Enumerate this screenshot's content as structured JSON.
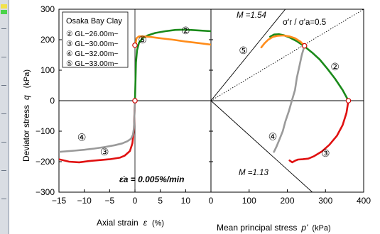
{
  "chart_data": [
    {
      "panel": "left",
      "type": "line",
      "title": "",
      "legend_title": "Osaka Bay Clay",
      "legend_placement": "top-left",
      "legend_entries": [
        "② GL−26.00m~",
        "③ GL−30.00m~",
        "④ GL−32.00m~",
        "⑤ GL−33.00m~"
      ],
      "xlabel": "Axial strain",
      "xlabel_symbol": "ε",
      "xlabel_unit": "(%)",
      "ylabel": "Deviator stress",
      "ylabel_symbol": "q",
      "ylabel_unit": "(kPa)",
      "xlim": [
        -15,
        15
      ],
      "ylim": [
        -300,
        300
      ],
      "x_ticks": [
        "−15",
        "−10",
        "−5",
        "0",
        "5",
        "10"
      ],
      "y_ticks": [
        "300",
        "200",
        "100",
        "0",
        "−100",
        "−200",
        "−300"
      ],
      "grid": false,
      "annotation": "ε̇a = 0.005%/min",
      "series": [
        {
          "name": "②",
          "color": "#1a8a1a",
          "x": [
            0,
            0.1,
            0.2,
            0.4,
            0.8,
            1.5,
            2.5,
            4,
            6,
            8,
            10,
            12,
            15
          ],
          "y": [
            0,
            60,
            125,
            165,
            190,
            205,
            214,
            222,
            228,
            232,
            233,
            231,
            228
          ]
        },
        {
          "name": "③",
          "color": "#e01010",
          "x": [
            0,
            -0.1,
            -0.2,
            -0.5,
            -1,
            -2,
            -3,
            -5,
            -7,
            -9,
            -11,
            -13,
            -15
          ],
          "y": [
            0,
            -40,
            -95,
            -140,
            -165,
            -180,
            -187,
            -192,
            -195,
            -198,
            -202,
            -200,
            -192
          ]
        },
        {
          "name": "④",
          "color": "#9a9a9a",
          "x": [
            0,
            -0.1,
            -0.2,
            -0.4,
            -0.8,
            -1.5,
            -2.5,
            -4,
            -6,
            -8,
            -10,
            -12,
            -15
          ],
          "y": [
            0,
            -45,
            -90,
            -112,
            -125,
            -133,
            -140,
            -146,
            -152,
            -157,
            -161,
            -164,
            -168
          ]
        },
        {
          "name": "⑤",
          "color": "#ff8c1a",
          "x": [
            0.1,
            0.3,
            0.8,
            1.5,
            3,
            5,
            7.5,
            10,
            12.5,
            15
          ],
          "y": [
            182,
            205,
            211,
            211,
            209,
            205,
            200,
            194,
            189,
            184
          ]
        }
      ],
      "markers": [
        {
          "label": "⑤",
          "x": 0,
          "y": 182,
          "style": "open-circle"
        },
        {
          "label": "",
          "x": 0,
          "y": 0,
          "style": "open-circle"
        }
      ],
      "series_labels": [
        {
          "text": "②",
          "x": 10,
          "y": 230
        },
        {
          "text": "⑤",
          "x": 1.5,
          "y": 200
        },
        {
          "text": "④",
          "x": -10.5,
          "y": -120
        },
        {
          "text": "③",
          "x": -6,
          "y": -168
        }
      ]
    },
    {
      "panel": "right",
      "type": "line",
      "title": "",
      "xlabel": "Mean principal stress",
      "xlabel_symbol": "p'",
      "xlabel_unit": "(kPa)",
      "xlim": [
        0,
        400
      ],
      "ylim": [
        -300,
        300
      ],
      "x_ticks": [
        "0",
        "100",
        "200",
        "300",
        "400"
      ],
      "grid": false,
      "reference_lines": [
        {
          "label": "M =1.54",
          "slope": 1.54,
          "style": "solid"
        },
        {
          "label": "M =1.13",
          "slope": -1.13,
          "style": "solid"
        },
        {
          "label": "σ'r / σ'a=0.5",
          "slope": 0.75,
          "style": "dotted"
        }
      ],
      "series": [
        {
          "name": "②",
          "color": "#1a8a1a",
          "x": [
            360,
            345,
            325,
            305,
            285,
            265,
            245,
            225,
            205,
            190,
            178,
            165,
            155
          ],
          "y": [
            0,
            35,
            72,
            105,
            135,
            158,
            178,
            195,
            208,
            215,
            218,
            217,
            210
          ]
        },
        {
          "name": "③",
          "color": "#e01010",
          "x": [
            360,
            355,
            345,
            330,
            310,
            290,
            270,
            255,
            240,
            228,
            220,
            213,
            206
          ],
          "y": [
            0,
            -40,
            -80,
            -115,
            -145,
            -167,
            -182,
            -190,
            -192,
            -193,
            -197,
            -202,
            -196
          ]
        },
        {
          "name": "④",
          "color": "#9a9a9a",
          "x": [
            245,
            238,
            232,
            225,
            220,
            212,
            204,
            195,
            188,
            180,
            172,
            165
          ],
          "y": [
            180,
            150,
            115,
            75,
            35,
            0,
            -35,
            -68,
            -100,
            -125,
            -150,
            -168
          ]
        },
        {
          "name": "⑤",
          "color": "#ff8c1a",
          "x": [
            245,
            235,
            220,
            205,
            190,
            175,
            162,
            150,
            140,
            132
          ],
          "y": [
            180,
            193,
            205,
            211,
            214,
            213,
            209,
            200,
            188,
            175
          ]
        }
      ],
      "markers": [
        {
          "label": "",
          "x": 360,
          "y": 0,
          "style": "open-circle"
        },
        {
          "label": "",
          "x": 245,
          "y": 180,
          "style": "open-circle"
        }
      ],
      "series_labels": [
        {
          "text": "⑤",
          "x": 85,
          "y": 165
        },
        {
          "text": "②",
          "x": 325,
          "y": 112
        },
        {
          "text": "④",
          "x": 162,
          "y": -118
        },
        {
          "text": "③",
          "x": 300,
          "y": -172
        }
      ]
    }
  ]
}
